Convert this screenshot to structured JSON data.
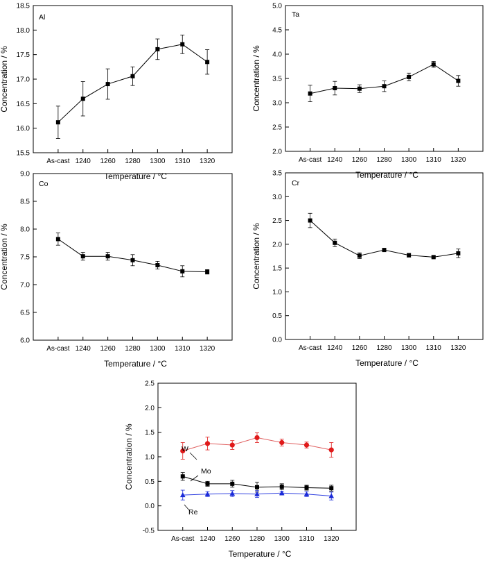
{
  "figure": {
    "xlabel_prefix": "Temperature / ",
    "xlabel_unit": "°C",
    "ylabel": "Concentration / %"
  },
  "chart_data": [
    {
      "type": "line",
      "panel_label": "Al",
      "categories": [
        "As-cast",
        "1240",
        "1260",
        "1280",
        "1300",
        "1310",
        "1320"
      ],
      "ylim": [
        15.5,
        18.5
      ],
      "yticks": [
        "15.5",
        "16.0",
        "16.5",
        "17.0",
        "17.5",
        "18.0",
        "18.5"
      ],
      "xlabel": "Temperature / °C",
      "ylabel": "Concentration / %",
      "grid": false,
      "series": [
        {
          "marker": "square",
          "color": "#000000",
          "values": [
            16.12,
            16.6,
            16.9,
            17.06,
            17.61,
            17.71,
            17.35
          ],
          "errors": [
            0.33,
            0.35,
            0.31,
            0.19,
            0.21,
            0.19,
            0.25
          ]
        }
      ]
    },
    {
      "type": "line",
      "panel_label": "Ta",
      "categories": [
        "As-cast",
        "1240",
        "1260",
        "1280",
        "1300",
        "1310",
        "1320"
      ],
      "ylim": [
        2.0,
        5.0
      ],
      "yticks": [
        "2.0",
        "2.5",
        "3.0",
        "3.5",
        "4.0",
        "4.5",
        "5.0"
      ],
      "xlabel": "Temperature / °C",
      "ylabel": "Concentration / %",
      "grid": false,
      "series": [
        {
          "marker": "square",
          "color": "#000000",
          "values": [
            3.19,
            3.3,
            3.29,
            3.34,
            3.53,
            3.79,
            3.45
          ],
          "errors": [
            0.17,
            0.14,
            0.08,
            0.11,
            0.08,
            0.06,
            0.11
          ]
        }
      ]
    },
    {
      "type": "line",
      "panel_label": "Co",
      "categories": [
        "As-cast",
        "1240",
        "1260",
        "1280",
        "1300",
        "1310",
        "1320"
      ],
      "ylim": [
        6.0,
        9.0
      ],
      "yticks": [
        "6.0",
        "6.5",
        "7.0",
        "7.5",
        "8.0",
        "8.5",
        "9.0"
      ],
      "xlabel": "Temperature / °C",
      "ylabel": "Concentration / %",
      "grid": false,
      "series": [
        {
          "marker": "square",
          "color": "#000000",
          "values": [
            7.82,
            7.51,
            7.51,
            7.44,
            7.35,
            7.24,
            7.23
          ],
          "errors": [
            0.11,
            0.07,
            0.07,
            0.1,
            0.07,
            0.1,
            0.04
          ]
        }
      ]
    },
    {
      "type": "line",
      "panel_label": "Cr",
      "categories": [
        "As-cast",
        "1240",
        "1260",
        "1280",
        "1300",
        "1310",
        "1320"
      ],
      "ylim": [
        0.0,
        3.5
      ],
      "yticks": [
        "0.0",
        "0.5",
        "1.0",
        "1.5",
        "2.0",
        "2.5",
        "3.0",
        "3.5"
      ],
      "xlabel": "Temperature / °C",
      "ylabel": "Concentration / %",
      "grid": false,
      "series": [
        {
          "marker": "square",
          "color": "#000000",
          "values": [
            2.5,
            2.03,
            1.76,
            1.88,
            1.77,
            1.73,
            1.81
          ],
          "errors": [
            0.15,
            0.08,
            0.06,
            0.03,
            0.04,
            0.02,
            0.09
          ]
        }
      ]
    },
    {
      "type": "line",
      "panel_label": "",
      "categories": [
        "As-cast",
        "1240",
        "1260",
        "1280",
        "1300",
        "1310",
        "1320"
      ],
      "ylim": [
        -0.5,
        2.5
      ],
      "yticks": [
        "-0.5",
        "0.0",
        "0.5",
        "1.0",
        "1.5",
        "2.0",
        "2.5"
      ],
      "xlabel": "Temperature / °C",
      "ylabel": "Concentration / %",
      "grid": false,
      "series": [
        {
          "name": "W",
          "marker": "circle",
          "color": "#e01a1a",
          "line_color": "#e06060",
          "values": [
            1.12,
            1.27,
            1.24,
            1.39,
            1.29,
            1.24,
            1.14
          ],
          "errors": [
            0.17,
            0.13,
            0.09,
            0.1,
            0.07,
            0.06,
            0.15
          ]
        },
        {
          "name": "Mo",
          "marker": "square",
          "color": "#000000",
          "line_color": "#000000",
          "values": [
            0.6,
            0.45,
            0.45,
            0.38,
            0.39,
            0.37,
            0.36
          ],
          "errors": [
            0.08,
            0.05,
            0.07,
            0.1,
            0.06,
            0.05,
            0.06
          ]
        },
        {
          "name": "Re",
          "marker": "triangle",
          "color": "#1a2ad8",
          "line_color": "#3040e0",
          "values": [
            0.22,
            0.24,
            0.25,
            0.24,
            0.26,
            0.24,
            0.2
          ],
          "errors": [
            0.1,
            0.05,
            0.06,
            0.07,
            0.04,
            0.05,
            0.08
          ]
        }
      ],
      "annotations": [
        "W",
        "Mo",
        "Re"
      ]
    }
  ]
}
